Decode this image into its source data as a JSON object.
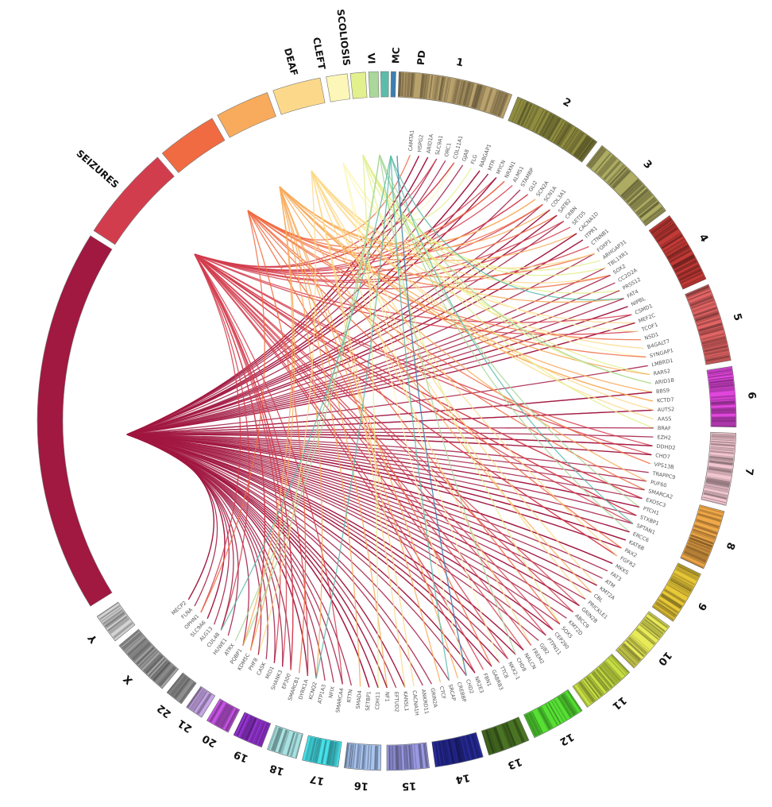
{
  "phenotypes": [
    {
      "label": "",
      "color": "#a11841"
    },
    {
      "label": "SEIZURES",
      "color": "#d23d4d"
    },
    {
      "label": "",
      "color": "#f06b42"
    },
    {
      "label": "",
      "color": "#f8ab5c"
    },
    {
      "label": "DEAF",
      "color": "#fcd98a"
    },
    {
      "label": "CLEFT",
      "color": "#fcf7b8"
    },
    {
      "label": "SCOLIOSIS",
      "color": "#e3f08e"
    },
    {
      "label": "VI",
      "color": "#a9d89a"
    },
    {
      "label": "MC",
      "color": "#5cbcaa"
    },
    {
      "label": "PD",
      "color": "#3b7fb0"
    }
  ],
  "chromosomes": [
    {
      "label": "1",
      "color": "#b9a16c"
    },
    {
      "label": "2",
      "color": "#8f8c40"
    },
    {
      "label": "3",
      "color": "#aeac62"
    },
    {
      "label": "4",
      "color": "#c23a36"
    },
    {
      "label": "5",
      "color": "#e26464"
    },
    {
      "label": "6",
      "color": "#e046dc"
    },
    {
      "label": "7",
      "color": "#f2c6d0"
    },
    {
      "label": "8",
      "color": "#f0a848"
    },
    {
      "label": "9",
      "color": "#e8c838"
    },
    {
      "label": "10",
      "color": "#e8ea58"
    },
    {
      "label": "11",
      "color": "#c8e044"
    },
    {
      "label": "12",
      "color": "#56e034"
    },
    {
      "label": "13",
      "color": "#4a7424"
    },
    {
      "label": "14",
      "color": "#262a98"
    },
    {
      "label": "15",
      "color": "#9a9ae4"
    },
    {
      "label": "16",
      "color": "#a8c4f0"
    },
    {
      "label": "17",
      "color": "#46e0e8"
    },
    {
      "label": "18",
      "color": "#a8e2e2"
    },
    {
      "label": "19",
      "color": "#9434d2"
    },
    {
      "label": "20",
      "color": "#c454e2"
    },
    {
      "label": "21",
      "color": "#c6a6e6"
    },
    {
      "label": "22",
      "color": "#8e8e8e"
    },
    {
      "label": "X",
      "color": "#a4a4a4"
    },
    {
      "label": "Y",
      "color": "#d4d4d4"
    }
  ],
  "genes": [
    "CAMTA1",
    "HSPG2",
    "ARID1A",
    "SLC9A1",
    "ORC1",
    "COL11A1",
    "GJA8",
    "FLG",
    "RABGAP1",
    "MTR",
    "MYCN",
    "NRXN1",
    "ALMS1",
    "STAMBP",
    "GLI2",
    "SCN2A",
    "SCN1A",
    "COL3A1",
    "SATB2",
    "CRBN",
    "SETD5",
    "CACNA1D",
    "ITPR1",
    "CTNNB1",
    "FOXP1",
    "ARHGAP31",
    "TBL1XR1",
    "SOX2",
    "CC2D2A",
    "PRSS12",
    "FAT4",
    "NIPBL",
    "CSMD1",
    "MEF2C",
    "TCOF1",
    "NSD1",
    "B4GALT7",
    "SYNGAP1",
    "LMBRD1",
    "RARS2",
    "ARID1B",
    "BBS9",
    "KCTD7",
    "AUTS2",
    "AASS",
    "BRAF",
    "EZH2",
    "DDHD2",
    "CHD7",
    "VPS13B",
    "TRAPPC9",
    "PUF60",
    "SMARCA2",
    "EXOSC3",
    "PTCH1",
    "STXBP1",
    "SPTAN1",
    "ERCC6",
    "KAT6B",
    "PAX2",
    "FGFR2",
    "MKKS",
    "FAT3",
    "ATM",
    "KMT2A",
    "CBL",
    "PRICKLE1",
    "GRIN2B",
    "ABCC9",
    "KMT2D",
    "SOX5",
    "CEP290",
    "PTPN11",
    "GJB2",
    "FREM2",
    "NALCN",
    "CHD8",
    "NKX2-1",
    "TTC8",
    "GABRB3",
    "FBN1",
    "NR2E3",
    "CHD2",
    "CREBBP",
    "SRCAP",
    "CTCF",
    "GRIN2A",
    "ANKRD11",
    "CACNA1H",
    "KANSL1",
    "EFTUD2",
    "NF1",
    "CDH11",
    "SETBP1",
    "SMAD4",
    "RTTN",
    "SMARCA4",
    "NFIX",
    "ATP1A3",
    "KCNQ2",
    "DYRK1A",
    "SMARCB1",
    "EP300",
    "SHANK3",
    "MID1",
    "CASK",
    "PHF8",
    "KDM5C",
    "PQBP1",
    "ATRX",
    "HUWE1",
    "CUL4B",
    "ALG13",
    "SLC9A6",
    "OPHN1",
    "FLNA",
    "MECP2"
  ]
}
